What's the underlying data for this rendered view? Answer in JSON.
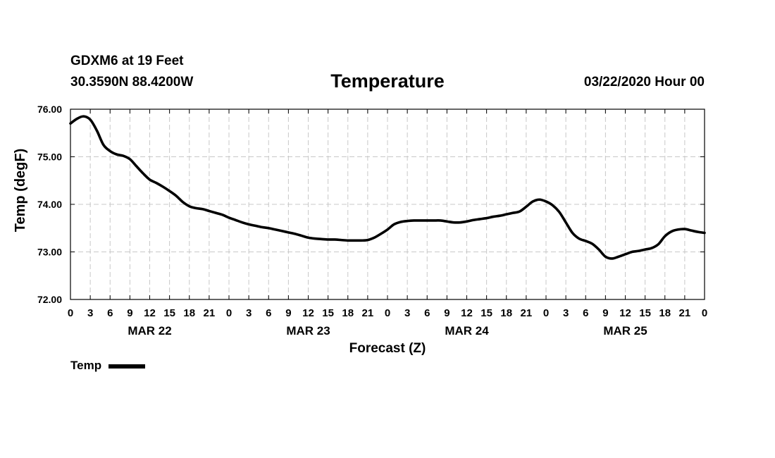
{
  "header": {
    "station": "GDXM6 at 19 Feet",
    "coordinates": "30.3590N 88.4200W",
    "title": "Temperature",
    "datetime": "03/22/2020 Hour 00"
  },
  "legend": {
    "label": "Temp",
    "color": "#000000"
  },
  "chart_data": {
    "type": "line",
    "title": "Temperature",
    "xlabel": "Forecast (Z)",
    "ylabel": "Temp (degF)",
    "ylim": [
      72.0,
      76.0
    ],
    "yticks": [
      "72.00",
      "73.00",
      "74.00",
      "75.00",
      "76.00"
    ],
    "xlim_hours": [
      0,
      96
    ],
    "xtick_step_hours": 3,
    "xtick_labels": [
      "0",
      "3",
      "6",
      "9",
      "12",
      "15",
      "18",
      "21",
      "0",
      "3",
      "6",
      "9",
      "12",
      "15",
      "18",
      "21",
      "0",
      "3",
      "6",
      "9",
      "12",
      "15",
      "18",
      "21",
      "0",
      "3",
      "6",
      "9",
      "12",
      "15",
      "18",
      "21",
      "0"
    ],
    "day_labels": [
      {
        "label": "MAR 22",
        "hour": 12
      },
      {
        "label": "MAR 23",
        "hour": 36
      },
      {
        "label": "MAR 24",
        "hour": 60
      },
      {
        "label": "MAR 25",
        "hour": 84
      }
    ],
    "grid": true,
    "series": [
      {
        "name": "Temp",
        "color": "#000000",
        "x": [
          0,
          1,
          2,
          3,
          4,
          5,
          6,
          7,
          8,
          9,
          10,
          11,
          12,
          13,
          14,
          15,
          16,
          17,
          18,
          19,
          20,
          21,
          22,
          23,
          24,
          25,
          26,
          27,
          28,
          29,
          30,
          31,
          32,
          33,
          34,
          35,
          36,
          37,
          38,
          39,
          40,
          41,
          42,
          43,
          44,
          45,
          46,
          47,
          48,
          49,
          50,
          51,
          52,
          53,
          54,
          55,
          56,
          57,
          58,
          59,
          60,
          61,
          62,
          63,
          64,
          65,
          66,
          67,
          68,
          69,
          70,
          71,
          72,
          73,
          74,
          75,
          76,
          77,
          78,
          79,
          80,
          81,
          82,
          83,
          84,
          85,
          86,
          87,
          88,
          89,
          90,
          91,
          92,
          93,
          94,
          95,
          96
        ],
        "values": [
          75.7,
          75.8,
          75.85,
          75.78,
          75.55,
          75.25,
          75.12,
          75.05,
          75.02,
          74.95,
          74.8,
          74.65,
          74.52,
          74.45,
          74.37,
          74.28,
          74.18,
          74.05,
          73.96,
          73.92,
          73.9,
          73.86,
          73.82,
          73.78,
          73.72,
          73.67,
          73.62,
          73.58,
          73.55,
          73.52,
          73.5,
          73.47,
          73.44,
          73.41,
          73.38,
          73.34,
          73.3,
          73.28,
          73.27,
          73.26,
          73.26,
          73.25,
          73.24,
          73.24,
          73.24,
          73.25,
          73.3,
          73.38,
          73.47,
          73.58,
          73.63,
          73.65,
          73.66,
          73.66,
          73.66,
          73.66,
          73.66,
          73.64,
          73.62,
          73.62,
          73.64,
          73.67,
          73.69,
          73.71,
          73.74,
          73.76,
          73.79,
          73.82,
          73.85,
          73.95,
          74.06,
          74.1,
          74.06,
          73.98,
          73.84,
          73.62,
          73.4,
          73.28,
          73.23,
          73.17,
          73.05,
          72.9,
          72.86,
          72.9,
          72.95,
          73.0,
          73.02,
          73.05,
          73.08,
          73.16,
          73.33,
          73.43,
          73.47,
          73.48,
          73.45,
          73.42,
          73.4
        ]
      }
    ]
  }
}
